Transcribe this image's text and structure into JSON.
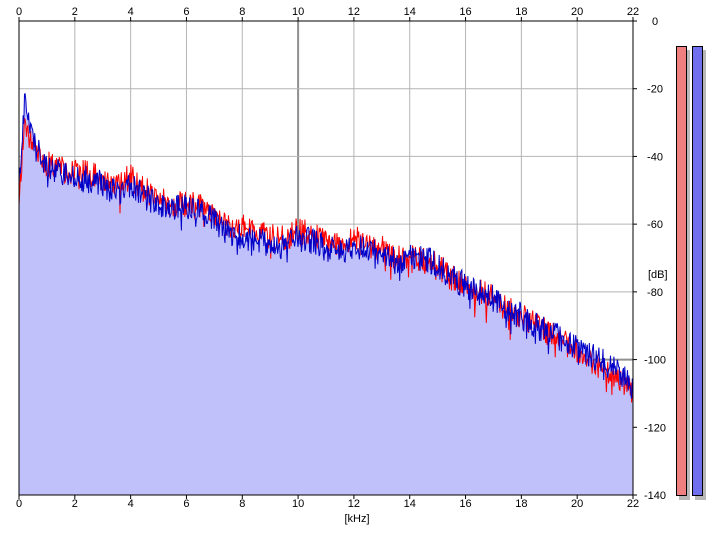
{
  "chart_data": {
    "type": "area",
    "xlabel": "[kHz]",
    "ylabel": "[dB]",
    "xlim": [
      0,
      22
    ],
    "ylim": [
      -140,
      0
    ],
    "x_ticks": [
      0,
      2,
      4,
      6,
      8,
      10,
      12,
      14,
      16,
      18,
      20,
      22
    ],
    "y_ticks": [
      0,
      -20,
      -40,
      -60,
      -80,
      -100,
      -120,
      -140
    ],
    "y_tick_labels": [
      "0",
      "-20",
      "-40",
      "-60",
      "-80",
      "-100",
      "-120",
      "-140"
    ],
    "grid": true,
    "fill_color": "#c0c0fa",
    "series": [
      {
        "color": "#ff0000",
        "x": [
          0,
          0.2,
          0.5,
          1,
          1.5,
          2,
          2.5,
          3,
          3.5,
          4,
          4.5,
          5,
          5.5,
          6,
          6.5,
          7,
          7.5,
          8,
          8.5,
          9,
          9.5,
          10,
          10.5,
          11,
          11.5,
          12,
          12.5,
          13,
          13.5,
          14,
          14.5,
          15,
          15.5,
          16,
          16.5,
          17,
          17.5,
          18,
          18.5,
          19,
          19.5,
          20,
          20.5,
          21,
          21.5,
          22
        ],
        "values": [
          -52,
          -30,
          -37,
          -42,
          -44,
          -45,
          -45,
          -47,
          -49,
          -46,
          -50,
          -52,
          -54,
          -54,
          -55,
          -57,
          -61,
          -60,
          -62,
          -64,
          -64,
          -62,
          -63,
          -65,
          -66,
          -64,
          -67,
          -67,
          -70,
          -70,
          -71,
          -72,
          -76,
          -78,
          -80,
          -82,
          -85,
          -87,
          -90,
          -92,
          -95,
          -97,
          -100,
          -103,
          -106,
          -110
        ]
      },
      {
        "color": "#0000c8",
        "x": [
          0,
          0.2,
          0.5,
          1,
          1.5,
          2,
          2.5,
          3,
          3.5,
          4,
          4.5,
          5,
          5.5,
          6,
          6.5,
          7,
          7.5,
          8,
          8.5,
          9,
          9.5,
          10,
          10.5,
          11,
          11.5,
          12,
          12.5,
          13,
          13.5,
          14,
          14.5,
          15,
          15.5,
          16,
          16.5,
          17,
          17.5,
          18,
          18.5,
          19,
          19.5,
          20,
          20.5,
          21,
          21.5,
          22
        ],
        "values": [
          -50,
          -24,
          -36,
          -43,
          -45,
          -46,
          -47,
          -48,
          -51,
          -48,
          -52,
          -54,
          -55,
          -55,
          -56,
          -59,
          -63,
          -64,
          -64,
          -66,
          -67,
          -64,
          -65,
          -67,
          -68,
          -66,
          -68,
          -69,
          -71,
          -70,
          -70,
          -72,
          -76,
          -78,
          -80,
          -82,
          -85,
          -87,
          -90,
          -92,
          -94,
          -96,
          -99,
          -101,
          -104,
          -108
        ]
      }
    ]
  },
  "meters": {
    "left_color": "#f08080",
    "right_color": "#7070ee"
  }
}
